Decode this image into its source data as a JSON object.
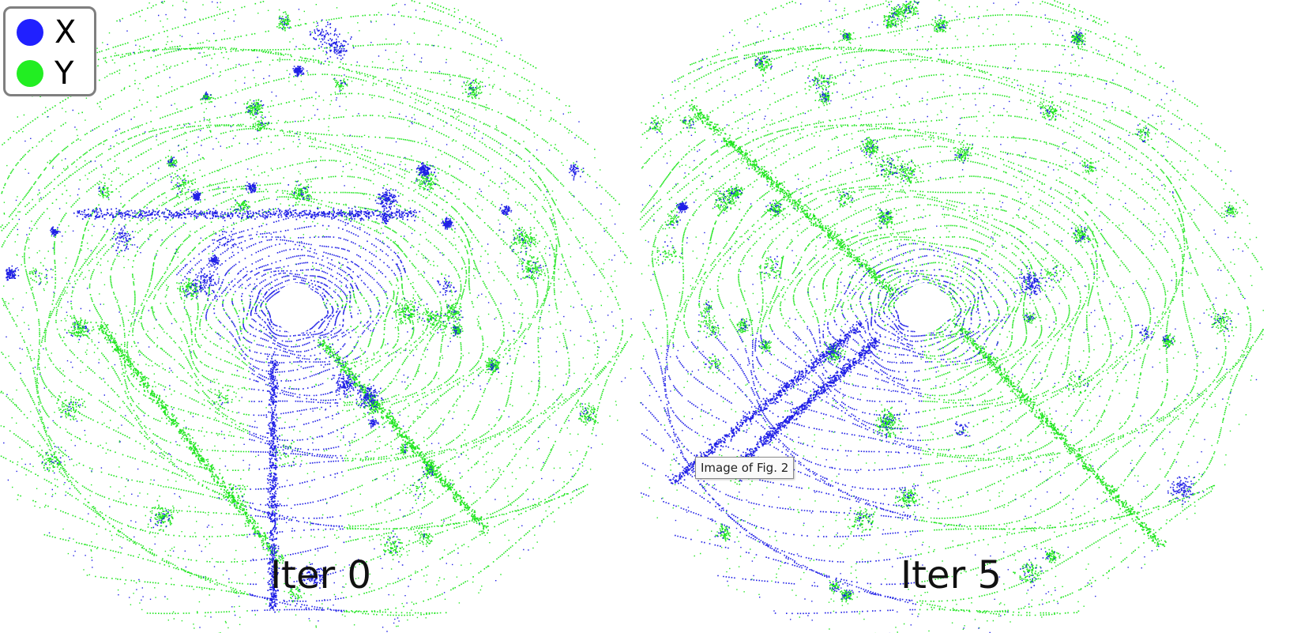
{
  "figure": {
    "legend": [
      {
        "label": "X",
        "color": "#2020ff"
      },
      {
        "label": "Y",
        "color": "#22ee22"
      }
    ],
    "panels": [
      {
        "label": "Iter 0"
      },
      {
        "label": "Iter 5"
      }
    ],
    "tooltip": "Image of Fig. 2",
    "colors": {
      "x_points": "#1f1fe6",
      "y_points": "#21e621",
      "background": "#ffffff"
    }
  }
}
